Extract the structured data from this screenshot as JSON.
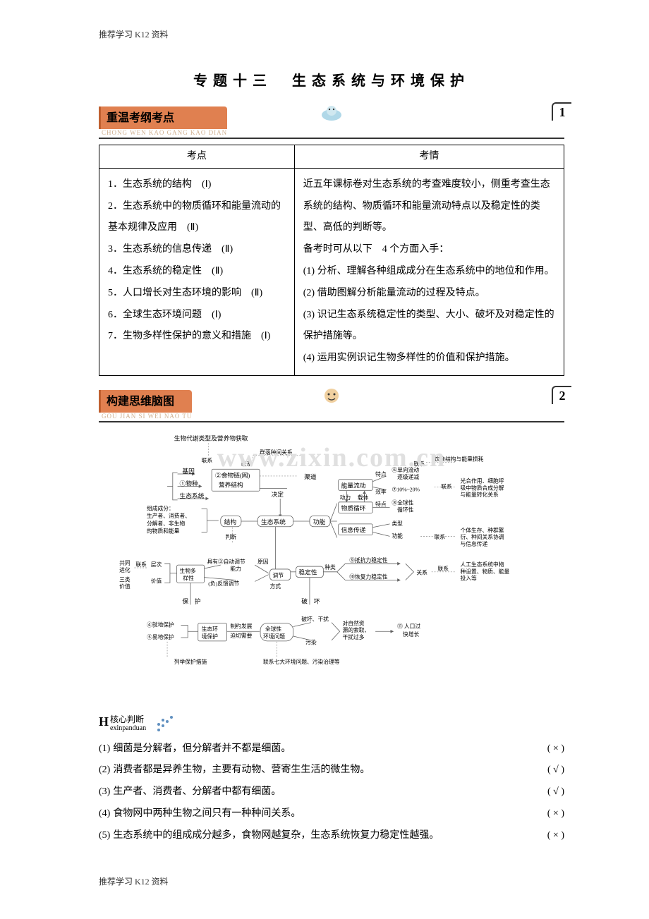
{
  "header": "推荐学习 K12 资料",
  "footer": "推荐学习 K12 资料",
  "title": "专题十三　生态系统与环境保护",
  "section1": {
    "banner": "重温考纲考点",
    "pinyin": "CHONG WEN KAO GANG KAO DIAN",
    "num": "1",
    "headers": [
      "考点",
      "考情"
    ],
    "col1": "1．生态系统的结构　(Ⅰ)\n2．生态系统中的物质循环和能量流动的基本规律及应用　(Ⅱ)\n3．生态系统的信息传递　(Ⅱ)\n4．生态系统的稳定性　(Ⅱ)\n5．人口增长对生态环境的影响　(Ⅱ)\n6．全球生态环境问题　(Ⅰ)\n7．生物多样性保护的意义和措施　(Ⅰ)",
    "col2": "近五年课标卷对生态系统的考查难度较小，侧重考查生态系统的结构、物质循环和能量流动特点以及稳定性的类型、高低的判断等。\n备考时可从以下　4 个方面入手：\n(1) 分析、理解各种组成成分在生态系统中的地位和作用。\n(2) 借助图解分析能量流动的过程及特点。\n(3) 识记生态系统稳定性的类型、大小、破坏及对稳定性的保护措施等。\n(4) 运用实例识记生物多样性的价值和保护措施。"
  },
  "section2": {
    "banner": "构建思维脑图",
    "pinyin": "GOU JIAN SI WEI NAO TU",
    "num": "2",
    "watermark": "www.zixin.com.cn"
  },
  "diagram": {
    "top_label": "生物代谢类型及营养物获取",
    "lx": "联系",
    "arrows": {
      "qunluo": "群落种间关系",
      "qudao": "渠道",
      "jueding": "决定",
      "yinshi": "饮食结构与能量损耗"
    },
    "left_group": {
      "items": [
        "基因",
        "①物种",
        "生态系统"
      ],
      "shiwulian": "②食物链(网)",
      "yingyang": "营养结构",
      "zucheng_title": "组成成分：",
      "zucheng_lines": [
        "生产者、消费者、",
        "分解者、非生物",
        "的物质和能量"
      ]
    },
    "center": {
      "jiegou": "结构",
      "shengtai": "生态系统",
      "gongneng": "功能",
      "panduan": "判断"
    },
    "right_func": {
      "nengliang": "能量流动",
      "dongli": "动力",
      "zaiti": "载体",
      "wuzhi": "物质循环",
      "xinxi": "信息传递",
      "tedian": "特点",
      "xiaolv": "效率",
      "t1": "⑥单向流动\n逐级递减",
      "t2": "⑦10%~20%",
      "t3": "⑧全球性\n循环性",
      "leixing": "类型",
      "gn2": "功能",
      "right_note1": "光合作用、细胞呼\n吸中物质合成分解\n与能量转化关系",
      "right_note2": "个体生存、种群繁\n衍、种间关系协调\n与信息传递",
      "right_note3": "人工生态系统中物\n种设置、物质、能量\n投入等"
    },
    "mid_row": {
      "gongtong": "共同\n进化",
      "sanlei": "三类\n价值",
      "cengci": "层次",
      "jiazhi": "价值",
      "duoyang": "生物多\n样性",
      "juyou": "具有③自动调节\n能力",
      "fufan": "(负)反馈调节",
      "yuanyin_t": "原因",
      "tiaojie": "调节",
      "fangshi": "方式",
      "wending": "稳定性",
      "zhonglei": "种类",
      "dkl": "⑨抵抗力稳定性",
      "hfl": "⑩恢复力稳定性",
      "guanxi": "关系"
    },
    "bottom": {
      "baohu": "保　护",
      "pohuai": "破　坏",
      "jiudi": "④就地保护",
      "yidi": "⑤易地保护",
      "shengtaihuan": "生态环\n境保护",
      "zhiyue": "制约发展\n迫切需要",
      "quanqiu": "全球性\n环境问题",
      "pohuai2": "破坏、干扰",
      "wuran": "污染",
      "duiziran": "对自然资\n源的索取、\n干扰过多",
      "renkou": "⑪ 人口过\n快增长",
      "liejv": "列举保护措施",
      "qida": "联系七大环境问题、污染治理等"
    }
  },
  "hexin": {
    "title1": "核心判断",
    "title2": "exinpanduan",
    "items": [
      {
        "n": "(1)",
        "t": "细菌是分解者，但分解者并不都是细菌。",
        "m": "( × )"
      },
      {
        "n": "(2)",
        "t": "消费者都是异养生物，主要有动物、营寄生生活的微生物。",
        "m": "( √ )"
      },
      {
        "n": "(3)",
        "t": "生产者、消费者、分解者中都有细菌。",
        "m": "( √ )"
      },
      {
        "n": "(4)",
        "t": "食物网中两种生物之间只有一种种间关系。",
        "m": "( × )"
      },
      {
        "n": "(5)",
        "t": "生态系统中的组成成分越多，食物网越复杂，生态系统恢复力稳定性越强。",
        "m": "( × )"
      }
    ]
  },
  "colors": {
    "banner_bg": "#e08050",
    "icon1_bg": "#b0d8e8",
    "icon2_bg": "#f0d0a0",
    "diagram_stroke": "#606060",
    "diagram_dash": "#888888"
  }
}
